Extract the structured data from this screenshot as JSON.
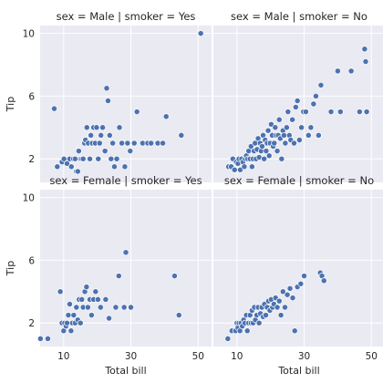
{
  "chart_data": {
    "type": "scatter",
    "xlabel": "Total bill",
    "ylabel": "Tip",
    "xticks": [
      10,
      30,
      50
    ],
    "yticks": [
      2,
      6,
      10
    ],
    "xlim": [
      3,
      54
    ],
    "ylim": [
      0.5,
      10.5
    ],
    "grid": true,
    "point_color": "#4c72b0",
    "background_color": "#eaeaf2",
    "facets": [
      {
        "title": "sex = Male | smoker = Yes",
        "points": [
          [
            7.2,
            5.2
          ],
          [
            8.1,
            1.5
          ],
          [
            9.5,
            1.8
          ],
          [
            10.1,
            2.0
          ],
          [
            11.0,
            1.7
          ],
          [
            11.8,
            2.0
          ],
          [
            12.3,
            1.5
          ],
          [
            12.9,
            2.0
          ],
          [
            13.4,
            2.0
          ],
          [
            13.8,
            1.2
          ],
          [
            14.2,
            1.2
          ],
          [
            14.5,
            2.5
          ],
          [
            15.0,
            2.0
          ],
          [
            15.4,
            2.0
          ],
          [
            15.8,
            2.0
          ],
          [
            16.2,
            3.0
          ],
          [
            16.5,
            3.2
          ],
          [
            16.9,
            4.0
          ],
          [
            17.3,
            3.0
          ],
          [
            17.8,
            2.0
          ],
          [
            18.1,
            3.5
          ],
          [
            18.5,
            3.0
          ],
          [
            18.9,
            4.0
          ],
          [
            19.4,
            3.0
          ],
          [
            19.8,
            4.0
          ],
          [
            20.3,
            2.0
          ],
          [
            20.7,
            3.0
          ],
          [
            21.1,
            3.5
          ],
          [
            21.6,
            4.0
          ],
          [
            22.3,
            2.5
          ],
          [
            22.8,
            6.5
          ],
          [
            23.2,
            5.7
          ],
          [
            23.7,
            3.5
          ],
          [
            24.1,
            2.0
          ],
          [
            24.6,
            3.0
          ],
          [
            25.1,
            1.5
          ],
          [
            25.8,
            2.0
          ],
          [
            26.6,
            4.0
          ],
          [
            27.3,
            3.0
          ],
          [
            28.2,
            1.5
          ],
          [
            29.0,
            3.0
          ],
          [
            29.8,
            2.5
          ],
          [
            31.0,
            3.0
          ],
          [
            31.8,
            5.0
          ],
          [
            33.5,
            3.0
          ],
          [
            35.0,
            3.0
          ],
          [
            36.0,
            3.0
          ],
          [
            38.0,
            3.0
          ],
          [
            39.5,
            3.0
          ],
          [
            40.5,
            4.7
          ],
          [
            45.0,
            3.5
          ],
          [
            50.8,
            10.0
          ]
        ]
      },
      {
        "title": "sex = Male | smoker = No",
        "points": [
          [
            7.5,
            1.5
          ],
          [
            8.3,
            1.5
          ],
          [
            8.8,
            2.0
          ],
          [
            9.3,
            1.3
          ],
          [
            9.8,
            1.8
          ],
          [
            10.3,
            1.7
          ],
          [
            10.6,
            2.0
          ],
          [
            11.0,
            1.3
          ],
          [
            11.4,
            2.0
          ],
          [
            11.8,
            1.8
          ],
          [
            12.2,
            1.5
          ],
          [
            12.5,
            2.0
          ],
          [
            12.8,
            2.2
          ],
          [
            13.2,
            2.0
          ],
          [
            13.5,
            2.5
          ],
          [
            13.9,
            2.0
          ],
          [
            14.2,
            2.8
          ],
          [
            14.5,
            1.5
          ],
          [
            14.8,
            2.0
          ],
          [
            15.1,
            2.5
          ],
          [
            15.4,
            3.0
          ],
          [
            15.7,
            2.0
          ],
          [
            16.0,
            2.6
          ],
          [
            16.3,
            3.3
          ],
          [
            16.6,
            2.1
          ],
          [
            16.9,
            3.0
          ],
          [
            17.2,
            2.5
          ],
          [
            17.5,
            2.8
          ],
          [
            17.8,
            3.5
          ],
          [
            18.1,
            2.0
          ],
          [
            18.4,
            3.2
          ],
          [
            18.7,
            2.5
          ],
          [
            19.0,
            3.0
          ],
          [
            19.3,
            3.8
          ],
          [
            19.6,
            2.2
          ],
          [
            19.9,
            3.0
          ],
          [
            20.2,
            4.2
          ],
          [
            20.5,
            3.5
          ],
          [
            20.8,
            2.8
          ],
          [
            21.1,
            3.0
          ],
          [
            21.4,
            4.0
          ],
          [
            21.7,
            3.5
          ],
          [
            22.0,
            2.5
          ],
          [
            22.3,
            3.5
          ],
          [
            22.6,
            4.5
          ],
          [
            22.9,
            3.3
          ],
          [
            23.3,
            2.0
          ],
          [
            23.7,
            3.8
          ],
          [
            24.0,
            3.5
          ],
          [
            24.4,
            3.0
          ],
          [
            24.8,
            4.0
          ],
          [
            25.2,
            5.0
          ],
          [
            25.6,
            3.5
          ],
          [
            26.0,
            3.2
          ],
          [
            26.5,
            4.5
          ],
          [
            27.0,
            3.0
          ],
          [
            27.5,
            5.3
          ],
          [
            28.0,
            5.7
          ],
          [
            28.6,
            3.2
          ],
          [
            29.2,
            4.0
          ],
          [
            29.8,
            5.0
          ],
          [
            30.5,
            5.0
          ],
          [
            31.3,
            3.5
          ],
          [
            32.0,
            4.0
          ],
          [
            32.8,
            5.5
          ],
          [
            33.5,
            6.0
          ],
          [
            34.3,
            3.5
          ],
          [
            35.0,
            6.7
          ],
          [
            38.0,
            5.0
          ],
          [
            40.0,
            7.6
          ],
          [
            40.8,
            5.0
          ],
          [
            44.0,
            7.6
          ],
          [
            46.5,
            5.0
          ],
          [
            48.0,
            9.0
          ],
          [
            48.3,
            8.2
          ],
          [
            48.6,
            5.0
          ]
        ]
      },
      {
        "title": "sex = Female | smoker = Yes",
        "points": [
          [
            3.1,
            1.0
          ],
          [
            5.3,
            1.0
          ],
          [
            9.0,
            4.0
          ],
          [
            9.5,
            2.0
          ],
          [
            10.0,
            1.5
          ],
          [
            10.3,
            2.0
          ],
          [
            10.7,
            1.8
          ],
          [
            11.0,
            2.0
          ],
          [
            11.4,
            2.5
          ],
          [
            11.8,
            3.2
          ],
          [
            12.2,
            1.5
          ],
          [
            12.6,
            2.0
          ],
          [
            13.0,
            2.5
          ],
          [
            13.4,
            2.0
          ],
          [
            13.8,
            3.0
          ],
          [
            14.2,
            2.2
          ],
          [
            14.6,
            3.5
          ],
          [
            15.0,
            2.0
          ],
          [
            15.4,
            3.5
          ],
          [
            15.8,
            3.0
          ],
          [
            16.3,
            4.0
          ],
          [
            16.8,
            4.3
          ],
          [
            17.2,
            3.0
          ],
          [
            17.8,
            3.5
          ],
          [
            18.3,
            2.5
          ],
          [
            18.9,
            3.5
          ],
          [
            19.5,
            4.0
          ],
          [
            20.2,
            3.5
          ],
          [
            21.0,
            3.0
          ],
          [
            22.5,
            3.5
          ],
          [
            23.5,
            2.3
          ],
          [
            25.5,
            3.0
          ],
          [
            26.4,
            5.0
          ],
          [
            28.0,
            3.0
          ],
          [
            28.5,
            6.5
          ],
          [
            30.0,
            3.0
          ],
          [
            43.0,
            5.0
          ],
          [
            44.3,
            2.5
          ]
        ]
      },
      {
        "title": "sex = Female | smoker = No",
        "points": [
          [
            7.3,
            1.0
          ],
          [
            8.5,
            1.5
          ],
          [
            9.6,
            1.5
          ],
          [
            10.0,
            2.0
          ],
          [
            10.3,
            1.7
          ],
          [
            10.6,
            2.0
          ],
          [
            10.9,
            1.5
          ],
          [
            11.2,
            2.0
          ],
          [
            11.6,
            1.8
          ],
          [
            12.0,
            2.2
          ],
          [
            12.4,
            2.0
          ],
          [
            12.8,
            2.5
          ],
          [
            13.1,
            1.5
          ],
          [
            13.5,
            2.0
          ],
          [
            13.9,
            2.5
          ],
          [
            14.2,
            2.0
          ],
          [
            14.5,
            2.8
          ],
          [
            14.8,
            2.0
          ],
          [
            15.2,
            3.0
          ],
          [
            15.5,
            2.2
          ],
          [
            15.9,
            2.5
          ],
          [
            16.3,
            3.0
          ],
          [
            16.6,
            2.0
          ],
          [
            17.0,
            2.6
          ],
          [
            17.4,
            3.0
          ],
          [
            17.8,
            2.4
          ],
          [
            18.2,
            3.2
          ],
          [
            18.6,
            2.5
          ],
          [
            19.0,
            3.0
          ],
          [
            19.4,
            3.4
          ],
          [
            19.8,
            2.8
          ],
          [
            20.2,
            3.5
          ],
          [
            20.6,
            3.0
          ],
          [
            21.0,
            3.2
          ],
          [
            21.5,
            3.6
          ],
          [
            22.0,
            3.0
          ],
          [
            22.6,
            3.4
          ],
          [
            23.1,
            2.5
          ],
          [
            23.7,
            4.0
          ],
          [
            24.3,
            3.0
          ],
          [
            25.0,
            3.8
          ],
          [
            25.8,
            4.2
          ],
          [
            26.6,
            3.6
          ],
          [
            27.2,
            1.5
          ],
          [
            28.0,
            4.3
          ],
          [
            29.0,
            4.5
          ],
          [
            30.0,
            5.0
          ],
          [
            34.8,
            5.2
          ],
          [
            35.3,
            5.0
          ],
          [
            35.9,
            4.7
          ]
        ]
      }
    ]
  }
}
